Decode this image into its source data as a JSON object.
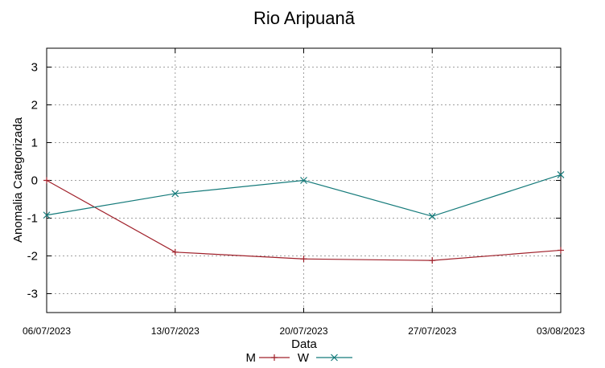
{
  "chart_data": {
    "type": "line",
    "title": "Rio Aripuanã",
    "xlabel": "Data",
    "ylabel": "Anomalia Categorizada",
    "categories": [
      "06/07/2023",
      "13/07/2023",
      "20/07/2023",
      "27/07/2023",
      "03/08/2023"
    ],
    "yticks": [
      "3",
      "2",
      "1",
      "0",
      "-1",
      "-2",
      "-3"
    ],
    "ylim": [
      -3.5,
      3.5
    ],
    "grid": true,
    "legend_position": "bottom",
    "series": [
      {
        "name": "M",
        "color": "#a0202a",
        "values": [
          0.0,
          -1.9,
          -2.08,
          -2.12,
          -1.85
        ]
      },
      {
        "name": "W",
        "color": "#147a7a",
        "values": [
          -0.92,
          -0.35,
          0.0,
          -0.95,
          0.15
        ]
      }
    ]
  }
}
